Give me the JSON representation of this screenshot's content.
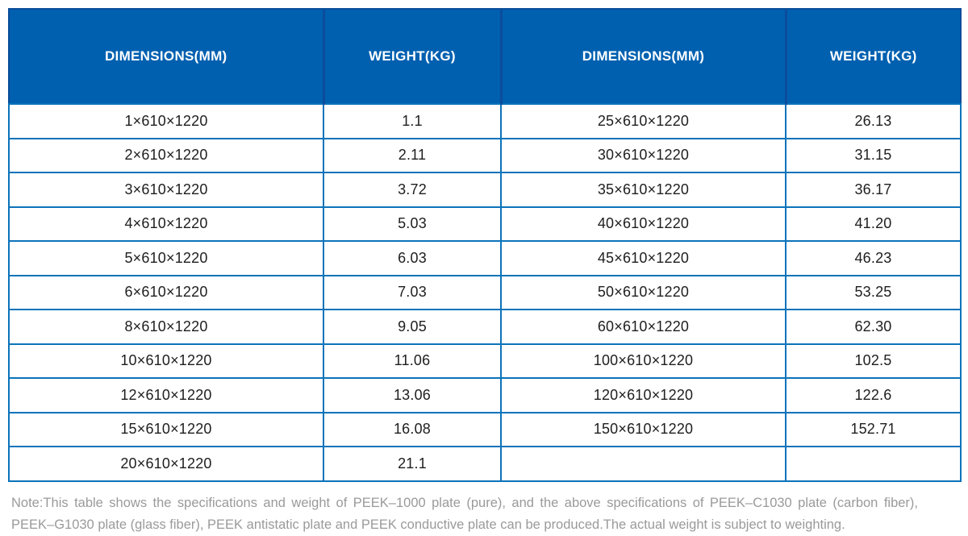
{
  "colors": {
    "header_bg": "#0060B0",
    "header_divider": "#0B4D9B",
    "grid_border": "#0C73BA",
    "header_text": "#FFFFFF",
    "cell_text": "#1E1E1E",
    "note_text": "#9A9A9A"
  },
  "table": {
    "headers": [
      "DIMENSIONS(MM)",
      "WEIGHT(KG)",
      "DIMENSIONS(MM)",
      "WEIGHT(KG)"
    ],
    "rows": [
      [
        "1×610×1220",
        "1.1",
        "25×610×1220",
        "26.13"
      ],
      [
        "2×610×1220",
        "2.11",
        "30×610×1220",
        "31.15"
      ],
      [
        "3×610×1220",
        "3.72",
        "35×610×1220",
        "36.17"
      ],
      [
        "4×610×1220",
        "5.03",
        "40×610×1220",
        "41.20"
      ],
      [
        "5×610×1220",
        "6.03",
        "45×610×1220",
        "46.23"
      ],
      [
        "6×610×1220",
        "7.03",
        "50×610×1220",
        "53.25"
      ],
      [
        "8×610×1220",
        "9.05",
        "60×610×1220",
        "62.30"
      ],
      [
        "10×610×1220",
        "11.06",
        "100×610×1220",
        "102.5"
      ],
      [
        "12×610×1220",
        "13.06",
        "120×610×1220",
        "122.6"
      ],
      [
        "15×610×1220",
        "16.08",
        "150×610×1220",
        "152.71"
      ],
      [
        "20×610×1220",
        "21.1",
        "",
        ""
      ]
    ]
  },
  "note": "Note:This table shows the specifications and weight of PEEK–1000 plate (pure), and the above specifications of PEEK–C1030 plate (carbon fiber), PEEK–G1030 plate (glass fiber), PEEK antistatic plate and PEEK conductive plate can be produced.The actual weight is subject to weighting."
}
